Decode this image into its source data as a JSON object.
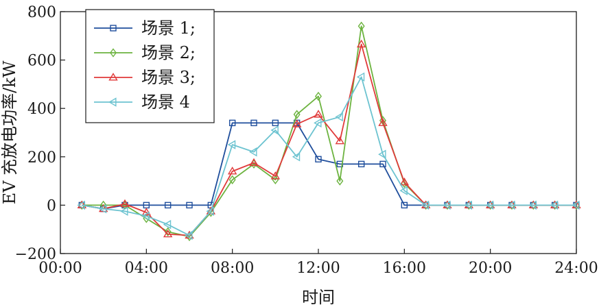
{
  "chart_data": {
    "type": "line",
    "xlabel": "时间",
    "ylabel": "EV 充放电功率/kW",
    "xlim": [
      0,
      24
    ],
    "ylim": [
      -200,
      800
    ],
    "xticks": [
      {
        "value": 0,
        "label": "00:00"
      },
      {
        "value": 4,
        "label": "04:00"
      },
      {
        "value": 8,
        "label": "08:00"
      },
      {
        "value": 12,
        "label": "12:00"
      },
      {
        "value": 16,
        "label": "16:00"
      },
      {
        "value": 20,
        "label": "20:00"
      },
      {
        "value": 24,
        "label": "24:00"
      }
    ],
    "yticks": [
      {
        "value": -200,
        "label": "−200"
      },
      {
        "value": 0,
        "label": "0"
      },
      {
        "value": 200,
        "label": "200"
      },
      {
        "value": 400,
        "label": "400"
      },
      {
        "value": 600,
        "label": "600"
      },
      {
        "value": 800,
        "label": "800"
      }
    ],
    "grid": false,
    "legend": "top-left",
    "x": [
      1,
      2,
      3,
      4,
      5,
      6,
      7,
      8,
      9,
      10,
      11,
      12,
      13,
      14,
      15,
      16,
      17,
      18,
      19,
      20,
      21,
      22,
      23,
      24
    ],
    "series": [
      {
        "name": "场景 1;",
        "color": "#1f4e9c",
        "marker": "square",
        "values": [
          0,
          -15,
          0,
          0,
          0,
          0,
          0,
          340,
          340,
          340,
          340,
          190,
          170,
          170,
          170,
          0,
          0,
          0,
          0,
          0,
          0,
          0,
          0,
          0
        ]
      },
      {
        "name": "场景 2;",
        "color": "#6cb33f",
        "marker": "diamond",
        "values": [
          0,
          0,
          0,
          -55,
          -110,
          -130,
          -30,
          105,
          170,
          105,
          375,
          450,
          100,
          740,
          350,
          90,
          0,
          0,
          0,
          0,
          0,
          0,
          0,
          0
        ]
      },
      {
        "name": "场景 3;",
        "color": "#e03a3a",
        "marker": "triangle-up",
        "values": [
          0,
          -15,
          5,
          -30,
          -120,
          -125,
          -25,
          140,
          175,
          120,
          335,
          375,
          265,
          665,
          340,
          95,
          0,
          0,
          0,
          0,
          0,
          0,
          0,
          0
        ]
      },
      {
        "name": "场景 4",
        "color": "#6cc3d0",
        "marker": "triangle-left",
        "values": [
          0,
          -15,
          -25,
          -45,
          -80,
          -125,
          -25,
          250,
          220,
          310,
          200,
          340,
          365,
          530,
          210,
          60,
          0,
          0,
          0,
          0,
          0,
          0,
          0,
          0
        ]
      }
    ]
  }
}
